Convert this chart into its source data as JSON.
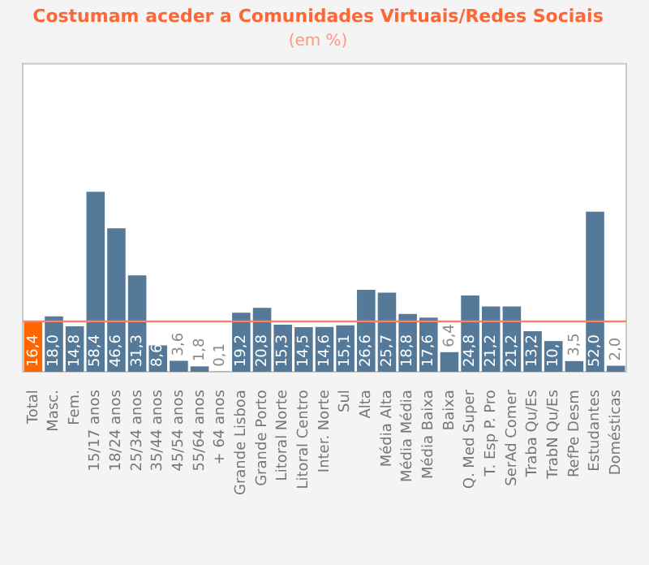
{
  "chart_data": {
    "type": "bar",
    "title": "Costumam aceder a Comunidades Virtuais/Redes Sociais",
    "subtitle": "(em %)",
    "categories": [
      "Total",
      "Masc.",
      "Fem.",
      "15/17 anos",
      "18/24 anos",
      "25/34 anos",
      "35/44 anos",
      "45/54 anos",
      "55/64 anos",
      "+ 64 anos",
      "Grande Lisboa",
      "Grande Porto",
      "Litoral Norte",
      "Litoral Centro",
      "Inter. Norte",
      "Sul",
      "Alta",
      "Média Alta",
      "Média Média",
      "Média Baixa",
      "Baixa",
      "Q. Med Super",
      "T. Esp P. Pro",
      "SerAd Comer",
      "Traba Qu/Es",
      "TrabN Qu/Es",
      "RefPe Desm",
      "Estudantes",
      "Domésticas"
    ],
    "values": [
      16.4,
      18.0,
      14.8,
      58.4,
      46.6,
      31.3,
      8.6,
      3.6,
      1.8,
      0.1,
      19.2,
      20.8,
      15.3,
      14.5,
      14.6,
      15.1,
      26.6,
      25.7,
      18.8,
      17.6,
      6.4,
      24.8,
      21.2,
      21.2,
      13.2,
      10,
      3.5,
      52.0,
      2.0
    ],
    "value_labels": [
      "16,4",
      "18,0",
      "14,8",
      "58,4",
      "46,6",
      "31,3",
      "8,6",
      "3,6",
      "1,8",
      "0,1",
      "19,2",
      "20,8",
      "15,3",
      "14,5",
      "14,6",
      "15,1",
      "26,6",
      "25,7",
      "18,8",
      "17,6",
      "6,4",
      "24,8",
      "21,2",
      "21,2",
      "13,2",
      "10,",
      "3,5",
      "52,0",
      "2,0"
    ],
    "colors": [
      "#ff6600",
      "#557a99",
      "#557a99",
      "#557a99",
      "#557a99",
      "#557a99",
      "#557a99",
      "#557a99",
      "#557a99",
      "#557a99",
      "#557a99",
      "#557a99",
      "#557a99",
      "#557a99",
      "#557a99",
      "#557a99",
      "#557a99",
      "#557a99",
      "#557a99",
      "#557a99",
      "#557a99",
      "#557a99",
      "#557a99",
      "#557a99",
      "#557a99",
      "#557a99",
      "#557a99",
      "#557a99",
      "#557a99"
    ],
    "ylim": [
      0,
      100
    ],
    "tick_labels": "x",
    "grid": false,
    "legend": false,
    "ref_lines": [
      {
        "axis": "y",
        "value": 16.4,
        "color": "#ff7f66"
      }
    ]
  }
}
